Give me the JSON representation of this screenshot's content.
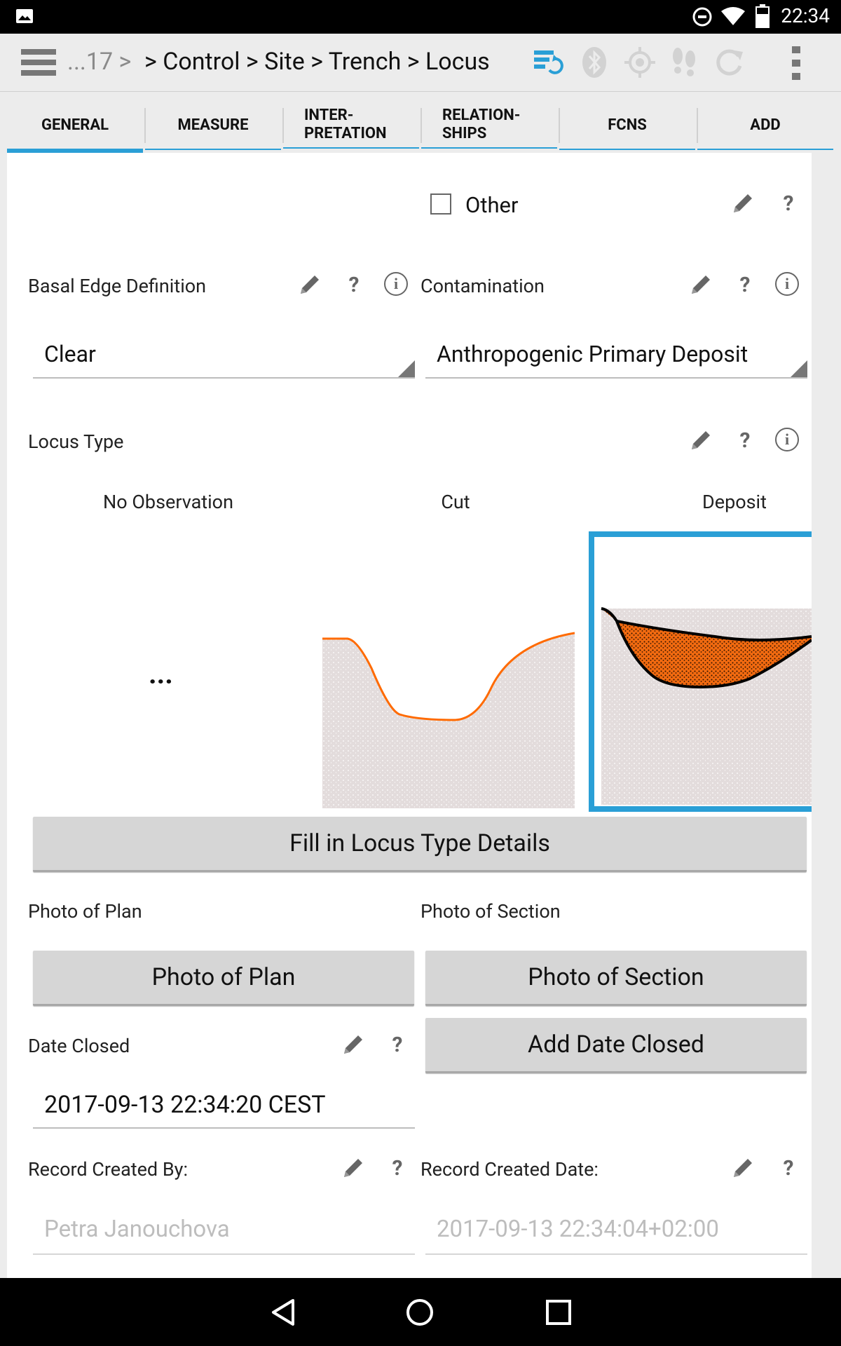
{
  "status": {
    "time": "22:34"
  },
  "toolbar": {
    "crumb_prefix": "...17 >",
    "crumb_path": "> Control > Site > Trench > Locus"
  },
  "tabs": [
    {
      "label": "GENERAL",
      "active": true
    },
    {
      "label": "MEASURE"
    },
    {
      "label": "INTER-\nPRETATION"
    },
    {
      "label": "RELATION-\nSHIPS"
    },
    {
      "label": "FCNS"
    },
    {
      "label": "ADD"
    }
  ],
  "form": {
    "other_label": "Other",
    "basal_edge": {
      "label": "Basal Edge Definition",
      "value": "Clear"
    },
    "contamination": {
      "label": "Contamination",
      "value": "Anthropogenic Primary Deposit"
    },
    "locus_type": {
      "label": "Locus Type",
      "options": [
        "No Observation",
        "Cut",
        "Deposit"
      ],
      "no_observation_glyph": "...",
      "selected": "Deposit"
    },
    "fill_details_button": "Fill in Locus Type Details",
    "photo_plan": {
      "label": "Photo of Plan",
      "button": "Photo of Plan"
    },
    "photo_section": {
      "label": "Photo of Section",
      "button": "Photo of Section"
    },
    "date_closed": {
      "label": "Date Closed",
      "value": "2017-09-13 22:34:20 CEST",
      "button": "Add Date Closed"
    },
    "record_created_by": {
      "label": "Record Created By:",
      "value": "Petra Janouchova"
    },
    "record_created_date": {
      "label": "Record Created Date:",
      "value": "2017-09-13 22:34:04+02:00"
    }
  },
  "colors": {
    "accent": "#2a9fd6",
    "cut_line": "#ff6a00",
    "deposit_fill": "#f26a10"
  },
  "icons": [
    "image-icon",
    "dnd-icon",
    "wifi-icon",
    "battery-icon",
    "menu-icon",
    "sync-icon",
    "bluetooth-icon",
    "gps-icon",
    "footsteps-icon",
    "refresh-icon",
    "overflow-icon",
    "pencil-icon",
    "help-icon",
    "info-icon",
    "back-icon",
    "home-icon",
    "recents-icon"
  ]
}
